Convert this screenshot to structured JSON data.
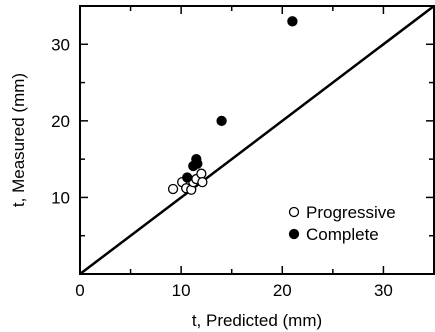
{
  "chart_data": {
    "type": "scatter",
    "title": "",
    "xlabel": "t, Predicted (mm)",
    "ylabel": "t, Measured (mm)",
    "xlim": [
      0,
      35
    ],
    "ylim": [
      0,
      35
    ],
    "xticks": [
      0,
      10,
      20,
      30
    ],
    "yticks": [
      10,
      20,
      30
    ],
    "x_tick_labels": [
      "0",
      "10",
      "20",
      "30"
    ],
    "y_tick_labels": [
      "10",
      "20",
      "30"
    ],
    "minor_tick_step": 5,
    "grid": false,
    "legend_position": "bottom-right",
    "reference_line": {
      "kind": "y=x",
      "color": "#000000"
    },
    "series": [
      {
        "name": "Progressive",
        "marker": "open-circle",
        "color": "#000000",
        "points": [
          {
            "x": 9.2,
            "y": 11.1
          },
          {
            "x": 10.1,
            "y": 12.0
          },
          {
            "x": 10.5,
            "y": 11.2
          },
          {
            "x": 11.0,
            "y": 11.0
          },
          {
            "x": 11.2,
            "y": 12.0
          },
          {
            "x": 11.5,
            "y": 12.4
          },
          {
            "x": 12.0,
            "y": 13.1
          },
          {
            "x": 12.1,
            "y": 12.0
          }
        ]
      },
      {
        "name": "Complete",
        "marker": "filled-circle",
        "color": "#000000",
        "points": [
          {
            "x": 10.6,
            "y": 12.6
          },
          {
            "x": 11.2,
            "y": 14.1
          },
          {
            "x": 11.5,
            "y": 15.0
          },
          {
            "x": 11.6,
            "y": 14.4
          },
          {
            "x": 14.0,
            "y": 20.0
          },
          {
            "x": 21.0,
            "y": 33.0
          }
        ]
      }
    ]
  }
}
